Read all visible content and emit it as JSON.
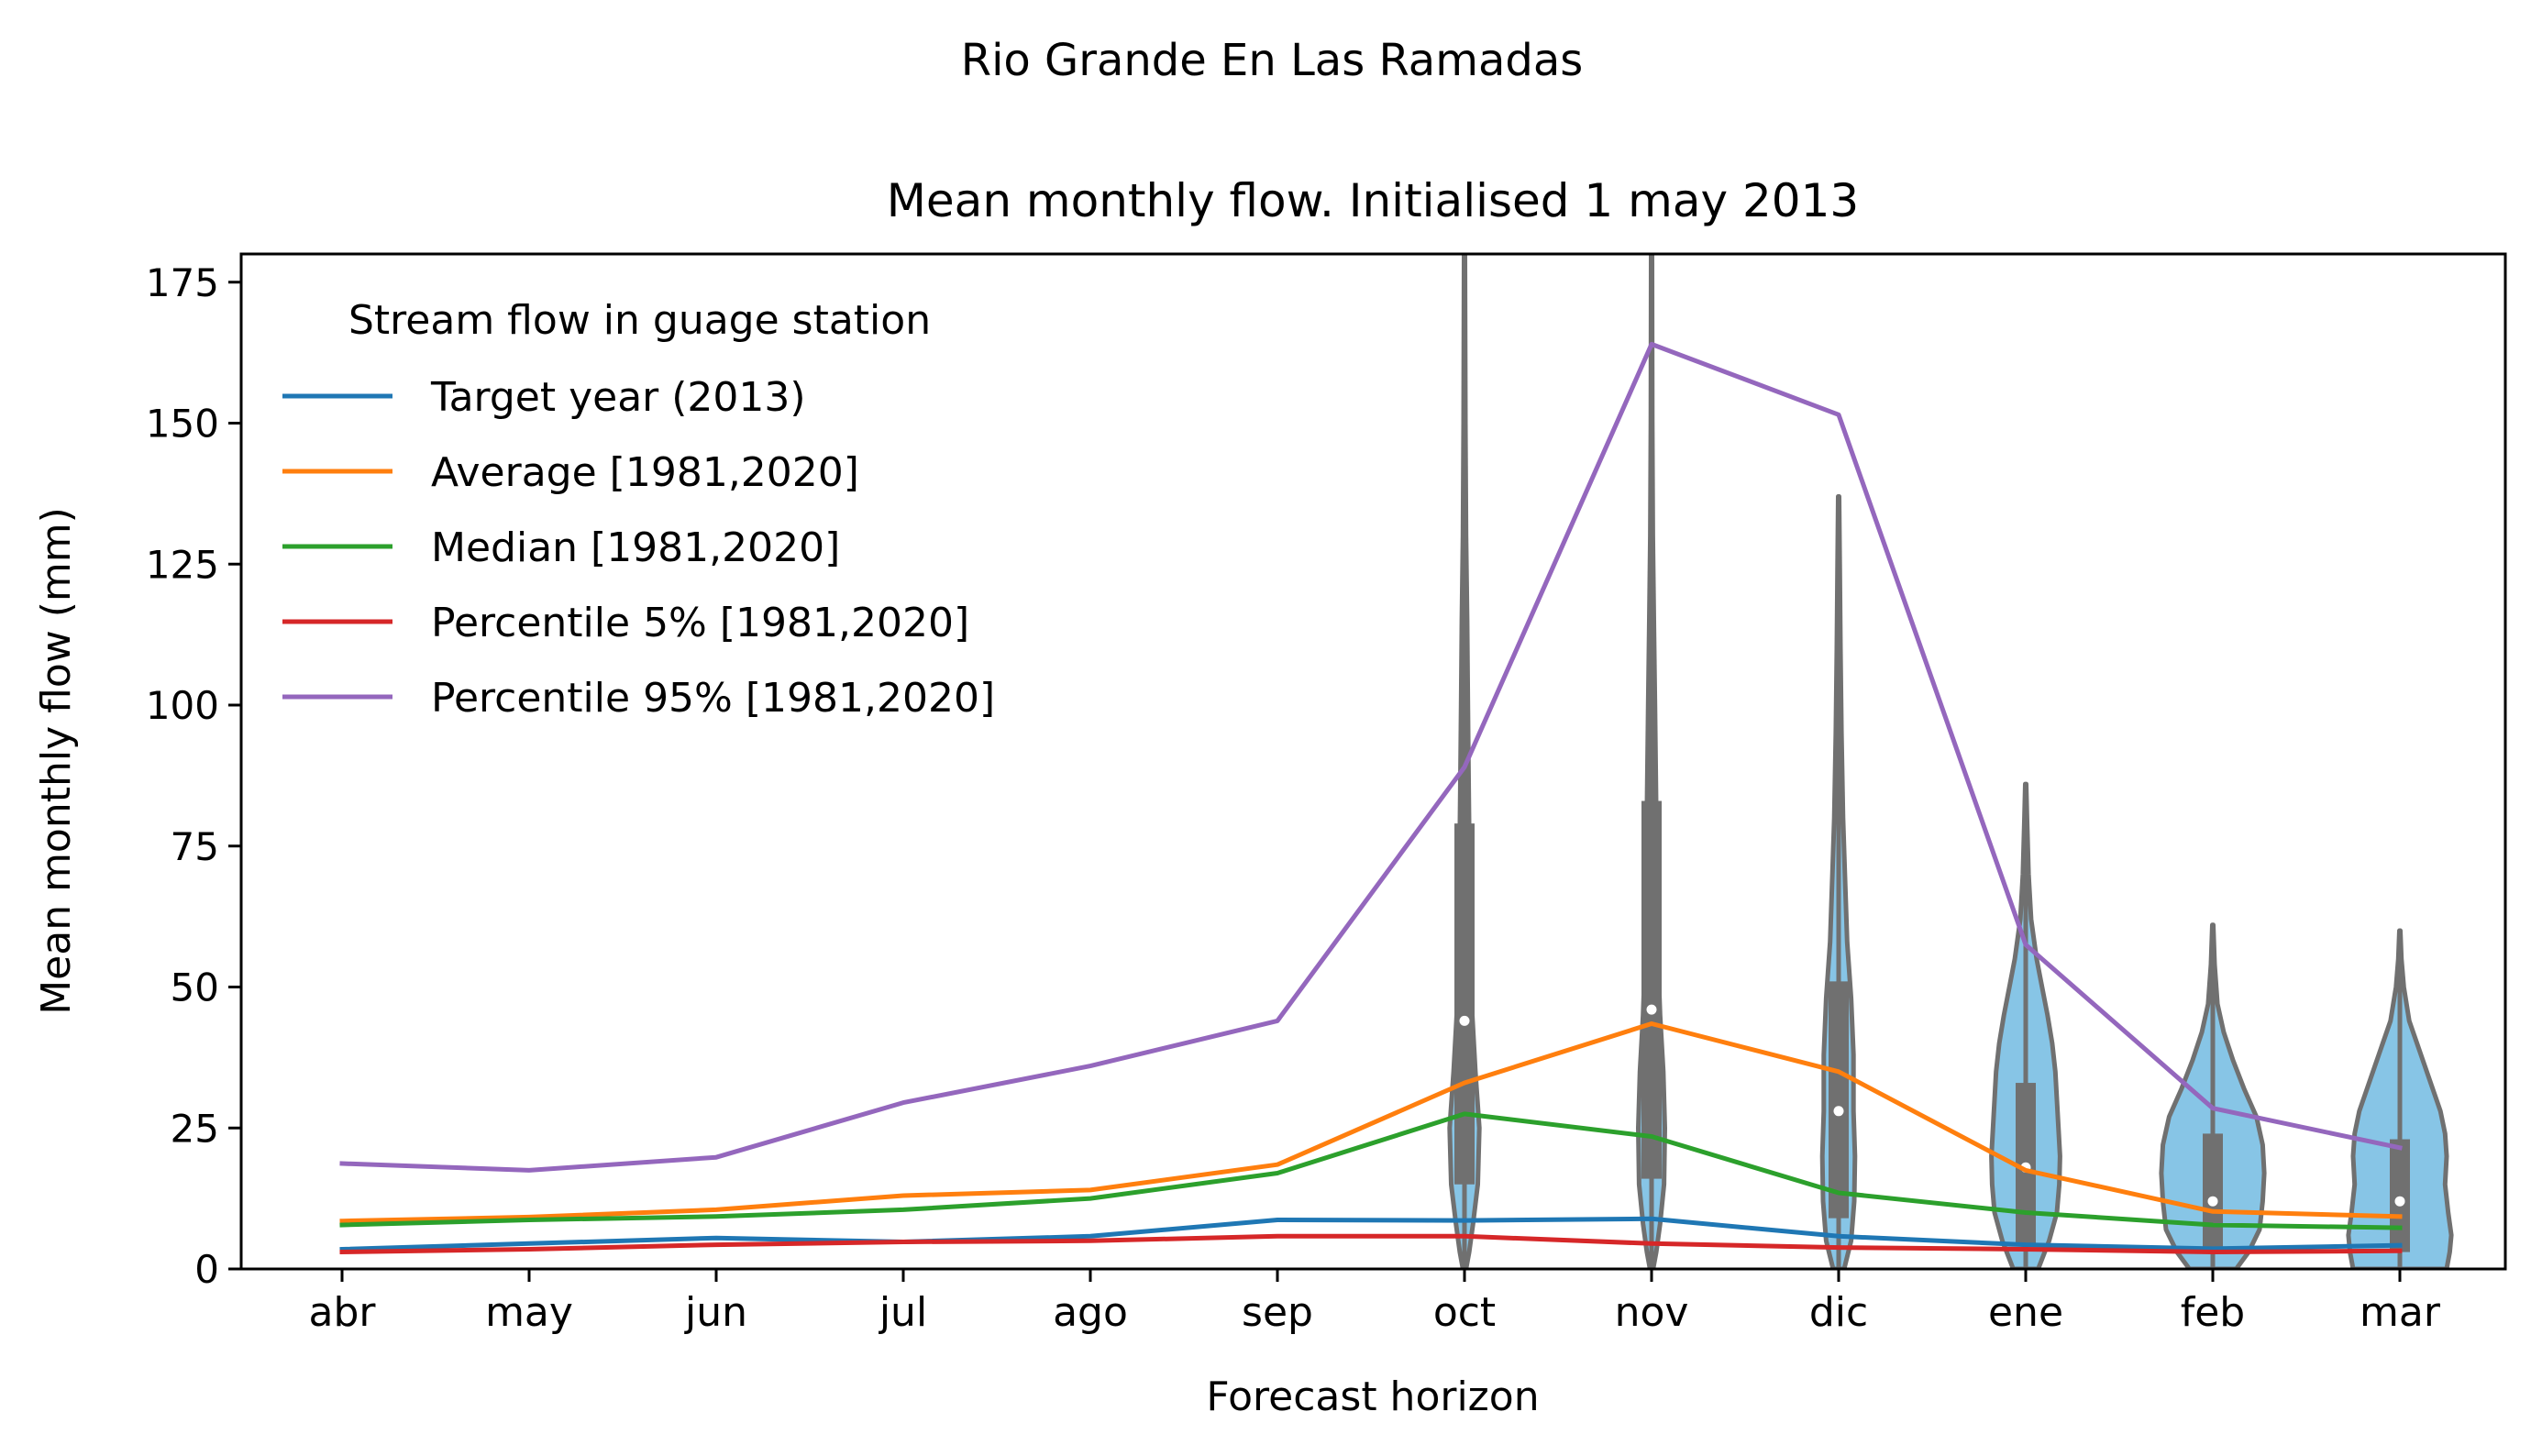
{
  "chart_data": {
    "type": "line",
    "suptitle": "Rio Grande En Las Ramadas",
    "title": "Mean monthly flow. Initialised 1 may 2013",
    "xlabel": "Forecast horizon",
    "ylabel": "Mean monthly flow (mm)",
    "ylim": [
      0,
      180
    ],
    "yticks": [
      0,
      25,
      50,
      75,
      100,
      125,
      150,
      175
    ],
    "categories": [
      "abr",
      "may",
      "jun",
      "jul",
      "ago",
      "sep",
      "oct",
      "nov",
      "dic",
      "ene",
      "feb",
      "mar"
    ],
    "legend": {
      "title": "Stream flow in guage station",
      "placement": "upper-left"
    },
    "series": [
      {
        "name": "Target year (2013)",
        "color": "#1f77b4",
        "values": [
          3.5,
          4.5,
          5.5,
          4.8,
          5.8,
          8.7,
          8.6,
          8.9,
          5.8,
          4.3,
          3.6,
          4.2
        ]
      },
      {
        "name": "Average [1981,2020]",
        "color": "#ff7f0e",
        "values": [
          8.5,
          9.2,
          10.5,
          13.0,
          14.0,
          18.5,
          33.0,
          43.5,
          35.0,
          17.5,
          10.2,
          9.3
        ]
      },
      {
        "name": "Median [1981,2020]",
        "color": "#2ca02c",
        "values": [
          7.8,
          8.7,
          9.3,
          10.5,
          12.5,
          17.0,
          27.5,
          23.5,
          13.5,
          10.0,
          7.8,
          7.3
        ]
      },
      {
        "name": "Percentile 5% [1981,2020]",
        "color": "#d62728",
        "values": [
          3.0,
          3.5,
          4.3,
          4.8,
          5.0,
          5.8,
          5.8,
          4.5,
          3.8,
          3.5,
          3.0,
          3.2
        ]
      },
      {
        "name": "Percentile 95% [1981,2020]",
        "color": "#9467bd",
        "values": [
          18.7,
          17.5,
          19.8,
          29.5,
          36.0,
          44.0,
          89.0,
          164.0,
          151.5,
          57.5,
          28.5,
          21.5
        ]
      }
    ],
    "violins": {
      "fill": "#87c5e6",
      "edge": "#707070",
      "items": [
        {
          "category": "oct",
          "max": 180,
          "q1": 15,
          "median": 44,
          "q3": 79,
          "min": 0,
          "profile": [
            [
              0,
              0.1
            ],
            [
              3,
              0.3
            ],
            [
              8,
              0.55
            ],
            [
              15,
              0.85
            ],
            [
              25,
              0.95
            ],
            [
              35,
              0.7
            ],
            [
              45,
              0.5
            ],
            [
              55,
              0.4
            ],
            [
              70,
              0.33
            ],
            [
              85,
              0.27
            ],
            [
              100,
              0.22
            ],
            [
              115,
              0.17
            ],
            [
              130,
              0.1
            ],
            [
              150,
              0.06
            ],
            [
              180,
              0.03
            ]
          ]
        },
        {
          "category": "nov",
          "max": 180,
          "q1": 16,
          "median": 46,
          "q3": 83,
          "min": 0,
          "profile": [
            [
              0,
              0.1
            ],
            [
              3,
              0.3
            ],
            [
              8,
              0.55
            ],
            [
              15,
              0.8
            ],
            [
              25,
              0.85
            ],
            [
              35,
              0.75
            ],
            [
              45,
              0.55
            ],
            [
              55,
              0.42
            ],
            [
              70,
              0.34
            ],
            [
              85,
              0.28
            ],
            [
              100,
              0.22
            ],
            [
              115,
              0.15
            ],
            [
              130,
              0.08
            ],
            [
              150,
              0.05
            ],
            [
              180,
              0.03
            ]
          ]
        },
        {
          "category": "dic",
          "max": 137,
          "q1": 9,
          "median": 28,
          "q3": 51,
          "min": 0,
          "profile": [
            [
              0,
              0.35
            ],
            [
              5,
              0.8
            ],
            [
              12,
              1.0
            ],
            [
              20,
              1.05
            ],
            [
              28,
              0.95
            ],
            [
              38,
              0.95
            ],
            [
              48,
              0.8
            ],
            [
              58,
              0.55
            ],
            [
              70,
              0.4
            ],
            [
              80,
              0.28
            ],
            [
              95,
              0.18
            ],
            [
              110,
              0.12
            ],
            [
              125,
              0.07
            ],
            [
              137,
              0.03
            ]
          ]
        },
        {
          "category": "ene",
          "max": 86,
          "q1": 4,
          "median": 18,
          "q3": 33,
          "min": 0,
          "profile": [
            [
              0,
              0.8
            ],
            [
              5,
              1.5
            ],
            [
              10,
              2.0
            ],
            [
              15,
              2.15
            ],
            [
              20,
              2.2
            ],
            [
              25,
              2.1
            ],
            [
              30,
              2.0
            ],
            [
              35,
              1.9
            ],
            [
              40,
              1.7
            ],
            [
              45,
              1.4
            ],
            [
              50,
              1.05
            ],
            [
              55,
              0.7
            ],
            [
              62,
              0.35
            ],
            [
              70,
              0.18
            ],
            [
              80,
              0.08
            ],
            [
              86,
              0.03
            ]
          ]
        },
        {
          "category": "feb",
          "max": 61,
          "q1": 3,
          "median": 12,
          "q3": 24,
          "min": 0,
          "profile": [
            [
              0,
              1.5
            ],
            [
              3,
              2.3
            ],
            [
              7,
              3.0
            ],
            [
              12,
              3.2
            ],
            [
              17,
              3.3
            ],
            [
              22,
              3.2
            ],
            [
              27,
              2.8
            ],
            [
              32,
              2.0
            ],
            [
              37,
              1.3
            ],
            [
              42,
              0.7
            ],
            [
              47,
              0.3
            ],
            [
              54,
              0.12
            ],
            [
              61,
              0.03
            ]
          ]
        },
        {
          "category": "mar",
          "max": 60,
          "q1": 3,
          "median": 12,
          "q3": 23,
          "min": 0,
          "profile": [
            [
              0,
              3.0
            ],
            [
              3,
              3.2
            ],
            [
              6,
              3.3
            ],
            [
              10,
              3.1
            ],
            [
              15,
              2.9
            ],
            [
              20,
              3.0
            ],
            [
              24,
              2.9
            ],
            [
              28,
              2.6
            ],
            [
              32,
              2.1
            ],
            [
              36,
              1.6
            ],
            [
              40,
              1.1
            ],
            [
              44,
              0.6
            ],
            [
              50,
              0.25
            ],
            [
              55,
              0.1
            ],
            [
              60,
              0.03
            ]
          ]
        }
      ]
    }
  }
}
